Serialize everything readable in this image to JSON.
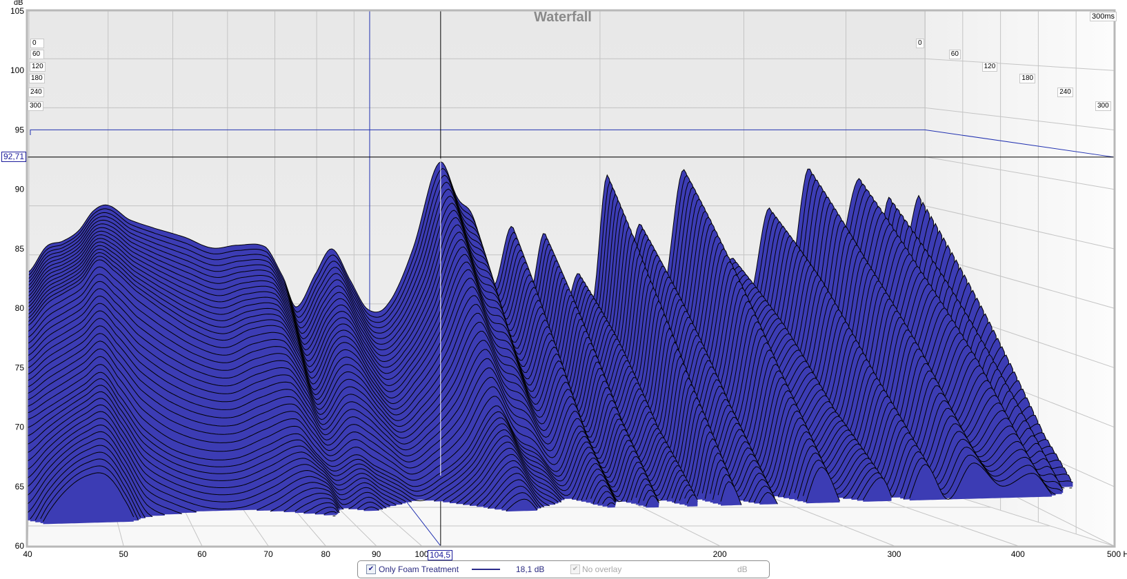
{
  "chart_data": {
    "type": "waterfall",
    "title": "Waterfall",
    "y_unit_label": "dB",
    "x_unit_label": "Hz",
    "x_range": [
      40,
      500
    ],
    "x_scale": "log",
    "y_range": [
      60,
      105
    ],
    "time_range_ms": [
      0,
      300
    ],
    "time_axis_label": "300ms",
    "grid": true,
    "x_ticks": [
      {
        "value": 40,
        "label": "40"
      },
      {
        "value": 50,
        "label": "50"
      },
      {
        "value": 60,
        "label": "60"
      },
      {
        "value": 70,
        "label": "70"
      },
      {
        "value": 80,
        "label": "80"
      },
      {
        "value": 90,
        "label": "90"
      },
      {
        "value": 100,
        "label": "100"
      },
      {
        "value": 200,
        "label": "200"
      },
      {
        "value": 300,
        "label": "300"
      },
      {
        "value": 400,
        "label": "400"
      },
      {
        "value": 500,
        "label": "500 Hz"
      }
    ],
    "y_ticks": [
      {
        "value": 105,
        "label": "105"
      },
      {
        "value": 100,
        "label": "100"
      },
      {
        "value": 95,
        "label": "95"
      },
      {
        "value": 90,
        "label": "90"
      },
      {
        "value": 85,
        "label": "85"
      },
      {
        "value": 80,
        "label": "80"
      },
      {
        "value": 75,
        "label": "75"
      },
      {
        "value": 70,
        "label": "70"
      },
      {
        "value": 65,
        "label": "65"
      },
      {
        "value": 60,
        "label": "60"
      }
    ],
    "time_ticks": [
      "0",
      "60",
      "120",
      "180",
      "240",
      "300"
    ],
    "frequencies_hz": [
      40,
      42,
      44,
      46,
      48,
      50,
      53,
      57,
      62,
      67,
      72,
      78,
      82,
      85,
      90,
      94,
      99,
      104,
      110,
      118,
      127,
      134,
      140,
      148,
      156,
      164,
      171,
      180,
      188,
      196,
      204,
      214,
      224,
      238,
      253,
      270,
      291,
      305,
      322,
      340,
      360,
      385,
      415,
      435,
      452,
      470,
      493,
      500
    ],
    "slices": [
      {
        "time_ms": 0,
        "values_db": [
          83,
          85.5,
          86,
          87,
          89,
          89.5,
          88,
          87,
          86,
          84.8,
          85,
          84.7,
          81.5,
          78.5,
          82,
          84.3,
          81,
          78,
          78.5,
          84,
          92.7,
          89,
          87,
          80,
          86,
          79,
          85.2,
          77,
          81,
          78,
          90.9,
          80,
          85.8,
          78,
          91.2,
          79,
          82,
          78,
          87,
          79,
          90.9,
          80,
          89.7,
          82,
          87.7,
          82,
          87.8,
          80
        ]
      },
      {
        "time_ms": 100,
        "values_db": [
          78,
          80,
          81,
          82,
          84,
          83,
          81,
          79,
          77,
          76,
          77,
          77,
          74,
          71,
          75,
          75,
          72,
          70,
          72,
          76,
          82,
          78,
          77,
          72,
          77,
          71,
          77,
          71,
          75,
          72,
          81,
          73,
          78,
          72,
          82,
          73,
          76,
          72,
          80,
          73,
          82,
          74,
          81,
          75,
          79,
          74,
          77,
          71
        ]
      },
      {
        "time_ms": 200,
        "values_db": [
          70,
          71,
          72,
          73,
          74,
          72,
          69,
          67,
          66,
          66,
          67,
          68,
          66,
          65,
          66,
          65,
          64,
          63,
          64,
          66,
          70,
          67,
          66,
          64,
          68,
          65,
          69,
          65,
          68,
          65,
          72,
          66,
          70,
          65,
          73,
          66,
          69,
          66,
          72,
          67,
          74,
          68,
          73,
          68,
          70,
          66,
          66,
          62
        ]
      },
      {
        "time_ms": 300,
        "values_db": [
          60,
          63,
          65,
          66,
          66,
          64,
          60,
          59,
          58,
          58,
          59,
          61,
          62,
          60,
          61,
          60,
          59,
          58,
          59,
          61,
          63,
          61,
          60,
          59,
          62,
          60,
          63,
          60,
          63,
          60,
          64,
          61,
          63,
          60,
          65,
          61,
          64,
          61,
          65,
          62,
          65,
          63,
          64,
          62,
          61,
          59,
          58,
          56
        ]
      }
    ],
    "series_color": "#3c3cb4",
    "cursor": {
      "frequency": "104,5",
      "level": "92,71"
    }
  },
  "legend": {
    "series_name": "Only Foam Treatment",
    "series_checked": true,
    "series_line_color": "#2a2a8a",
    "series_value": "18,1 dB",
    "overlay_label": "No overlay",
    "overlay_checked": true,
    "overlay_enabled": false,
    "overlay_value": "dB"
  }
}
